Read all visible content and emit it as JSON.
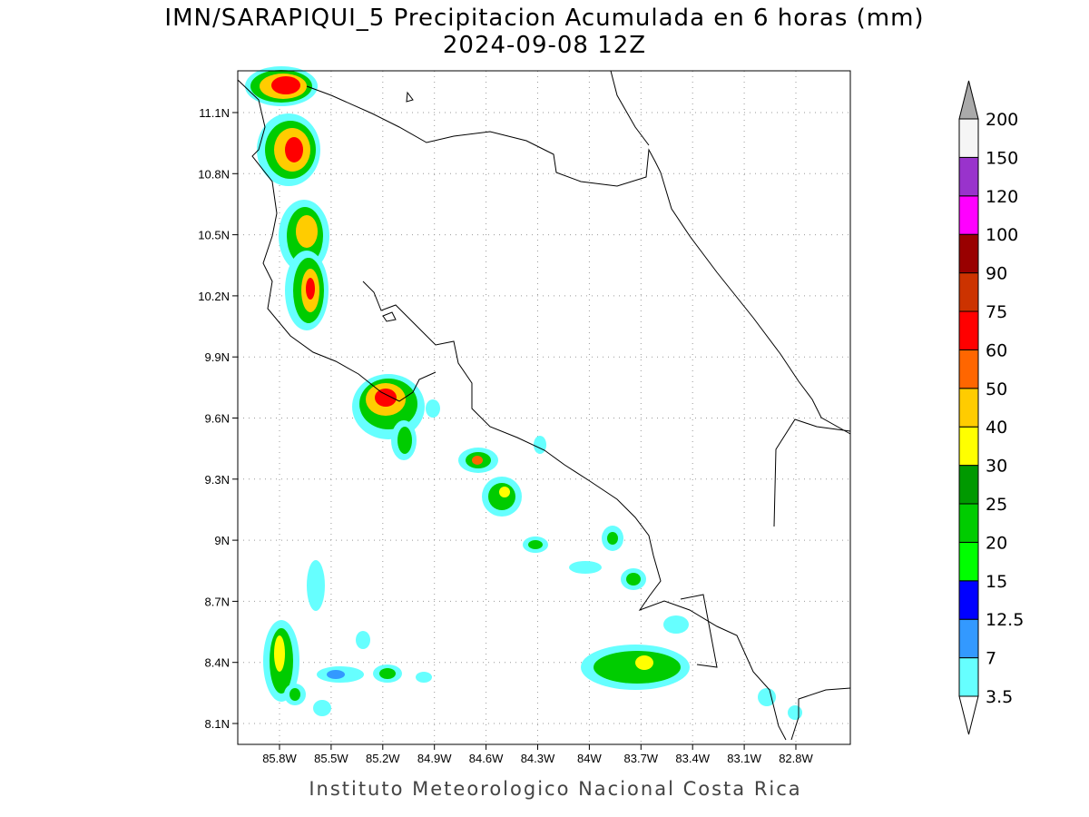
{
  "title": "IMN/SARAPIQUI_5 Precipitacion Acumulada en 6 horas (mm)",
  "subtitle": "2024-09-08 12Z",
  "footer": "Instituto Meteorologico Nacional Costa Rica",
  "map": {
    "lon_ticks": [
      "85.8W",
      "85.5W",
      "85.2W",
      "84.9W",
      "84.6W",
      "84.3W",
      "84W",
      "83.7W",
      "83.4W",
      "83.1W",
      "82.8W"
    ],
    "lat_ticks": [
      "11.1N",
      "10.8N",
      "10.5N",
      "10.2N",
      "9.9N",
      "9.6N",
      "9.3N",
      "9N",
      "8.7N",
      "8.4N",
      "8.1N"
    ]
  },
  "colorbar": {
    "levels": [
      3.5,
      7,
      12.5,
      15,
      20,
      25,
      30,
      40,
      50,
      60,
      75,
      90,
      100,
      120,
      150,
      200
    ],
    "colors": [
      "#66ffff",
      "#3399ff",
      "#0000ff",
      "#00ff00",
      "#00cc00",
      "#009900",
      "#ffff00",
      "#ffcc00",
      "#ff6600",
      "#ff0000",
      "#cc3300",
      "#990000",
      "#ff00ff",
      "#9933cc",
      "#f5f5f5"
    ],
    "below_color": "#ffffff",
    "above_color": "#aaaaaa"
  }
}
